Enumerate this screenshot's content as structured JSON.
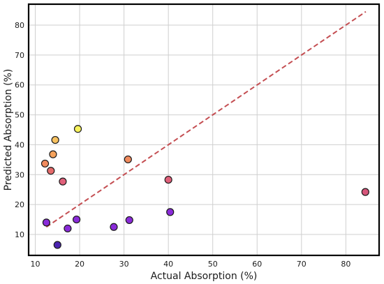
{
  "chart_data": {
    "type": "scatter",
    "title": "",
    "xlabel": "Actual Absorption (%)",
    "ylabel": "Predicted Absorption (%)",
    "xlim": [
      8.5,
      87.5
    ],
    "ylim": [
      3,
      87
    ],
    "xticks": [
      10,
      20,
      30,
      40,
      50,
      60,
      70,
      80
    ],
    "yticks": [
      10,
      20,
      30,
      40,
      50,
      60,
      70,
      80
    ],
    "grid": true,
    "legend": "none",
    "colormap": "plasma",
    "reference_line": {
      "style": "dashed",
      "color": "#c44e52",
      "from": [
        12.5,
        12.5
      ],
      "to": [
        84.5,
        84.5
      ]
    },
    "points": [
      {
        "x": 12.5,
        "y": 14.0,
        "color": "#8a2bd9"
      },
      {
        "x": 15.0,
        "y": 6.5,
        "color": "#4b23b0"
      },
      {
        "x": 17.3,
        "y": 12.0,
        "color": "#8a2bd9"
      },
      {
        "x": 19.3,
        "y": 15.0,
        "color": "#8a2bd9"
      },
      {
        "x": 27.7,
        "y": 12.5,
        "color": "#8a2bd9"
      },
      {
        "x": 31.2,
        "y": 14.8,
        "color": "#8a2bd9"
      },
      {
        "x": 40.4,
        "y": 17.5,
        "color": "#8a2bd9"
      },
      {
        "x": 12.2,
        "y": 33.7,
        "color": "#f08a5d"
      },
      {
        "x": 13.5,
        "y": 31.3,
        "color": "#e56b6b"
      },
      {
        "x": 14.0,
        "y": 36.8,
        "color": "#f5a25c"
      },
      {
        "x": 14.5,
        "y": 41.6,
        "color": "#f7c160"
      },
      {
        "x": 16.2,
        "y": 27.7,
        "color": "#e0607a"
      },
      {
        "x": 19.6,
        "y": 45.3,
        "color": "#f7f25c"
      },
      {
        "x": 30.9,
        "y": 35.1,
        "color": "#f08a5d"
      },
      {
        "x": 40.0,
        "y": 28.3,
        "color": "#e0607a"
      },
      {
        "x": 84.4,
        "y": 24.2,
        "color": "#d6557a"
      }
    ]
  }
}
